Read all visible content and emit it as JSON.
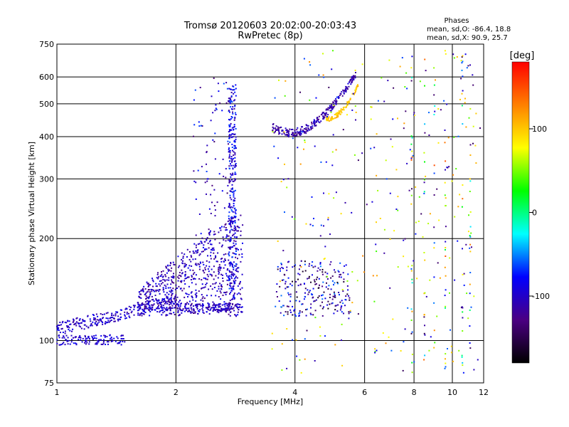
{
  "header": {
    "title": "Tromsø 20120603 20:02:00-20:03:43",
    "subtitle": "RwPretec (8p)"
  },
  "phase_stats": {
    "heading": "Phases",
    "o_line": "mean, sd,O: -86.4, 18.8",
    "x_line": "mean, sd,X: 90.9, 25.7"
  },
  "colorbar": {
    "label": "[deg]",
    "ticks": [
      "100",
      "0",
      "-100"
    ],
    "tick_values": [
      100,
      0,
      -100
    ],
    "range": [
      -180,
      180
    ],
    "palette": [
      "#000000",
      "#4b0082",
      "#0000ff",
      "#00ffff",
      "#00ff00",
      "#ffff00",
      "#ff8000",
      "#ff0000"
    ]
  },
  "chart_data": {
    "type": "scatter",
    "xlabel": "Frequency [MHz]",
    "ylabel": "Stationary phase Virtual Height [km]",
    "xscale": "log",
    "yscale": "log",
    "xlim": [
      1,
      12
    ],
    "ylim": [
      75,
      750
    ],
    "x_ticks": [
      1,
      2,
      4,
      6,
      8,
      10,
      12
    ],
    "x_tick_labels": [
      "1",
      "2",
      "4",
      "6",
      "8",
      "10",
      "12"
    ],
    "y_ticks": [
      75,
      100,
      200,
      300,
      400,
      500,
      600,
      750
    ],
    "y_tick_labels": [
      "75",
      "100",
      "200",
      "300",
      "400",
      "500",
      "600",
      "750"
    ],
    "grid": true,
    "traces": [
      {
        "name": "",
        "x_range": [
          1.0,
          1.5
        ],
        "y_range": [
          97,
          112
        ],
        "phase_deg": -95
      },
      {
        "name": "",
        "x_range": [
          1.1,
          1.7
        ],
        "y_range": [
          112,
          128
        ],
        "phase_deg": -100
      },
      {
        "name": "",
        "x_range": [
          1.7,
          2.9
        ],
        "y_range": [
          120,
          240
        ],
        "phase_deg": -105
      },
      {
        "name": "",
        "x_range": [
          2.7,
          2.95
        ],
        "y_range": [
          130,
          570
        ],
        "phase_deg": -90
      },
      {
        "name": "",
        "x_range": [
          3.5,
          5.7
        ],
        "y_range": [
          410,
          620
        ],
        "phase_deg": -110
      },
      {
        "name": "",
        "x_range": [
          4.8,
          5.8
        ],
        "y_range": [
          450,
          560
        ],
        "phase_deg": 100
      },
      {
        "name": "",
        "x_range": [
          3.6,
          5.5
        ],
        "y_range": [
          120,
          170
        ],
        "phase_deg": -110
      }
    ]
  }
}
